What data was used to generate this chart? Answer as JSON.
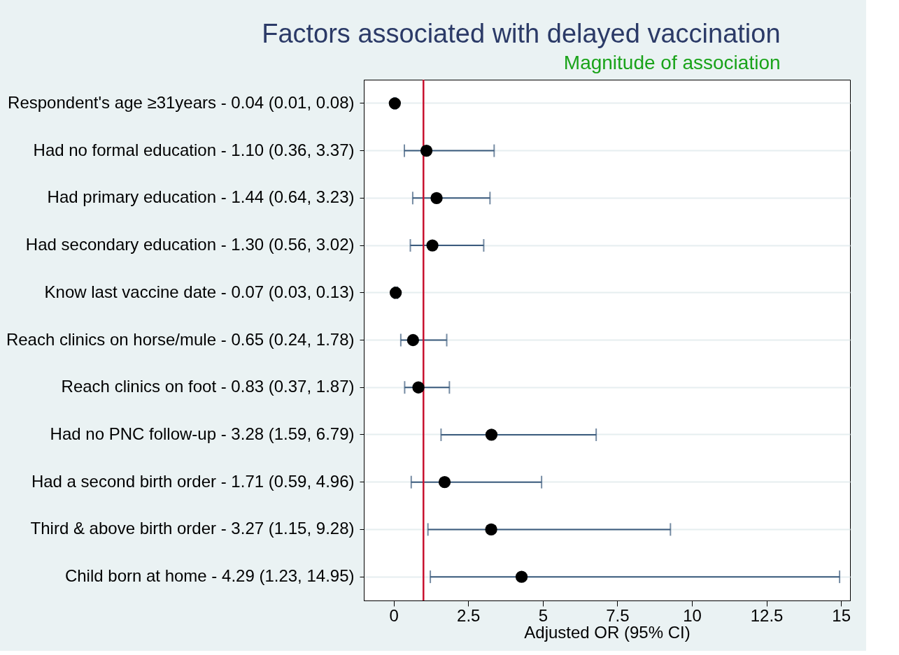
{
  "chart_data": {
    "type": "scatter",
    "orientation": "horizontal",
    "title": "Factors associated with delayed vaccination",
    "subtitle": "Magnitude of association",
    "xlabel": "Adjusted OR (95% CI)",
    "categories": [
      "Respondent's age ≥31years - 0.04 (0.01, 0.08)",
      "Had no formal education - 1.10 (0.36, 3.37)",
      "Had primary education - 1.44 (0.64, 3.23)",
      "Had secondary education - 1.30 (0.56, 3.02)",
      "Know last vaccine date - 0.07 (0.03, 0.13)",
      "Reach clinics on horse/mule - 0.65 (0.24, 1.78)",
      "Reach clinics on foot - 0.83 (0.37, 1.87)",
      "Had no PNC follow-up - 3.28 (1.59, 6.79)",
      "Had a second birth order - 1.71 (0.59, 4.96)",
      "Third & above birth order - 3.27 (1.15, 9.28)",
      "Child born at home - 4.29 (1.23, 14.95)"
    ],
    "series": [
      {
        "color": "#000000",
        "values": [
          0.04,
          1.1,
          1.44,
          1.3,
          0.07,
          0.65,
          0.83,
          3.28,
          1.71,
          3.27,
          4.29
        ],
        "errors": [
          [
            0.01,
            0.08
          ],
          [
            0.36,
            3.37
          ],
          [
            0.64,
            3.23
          ],
          [
            0.56,
            3.02
          ],
          [
            0.03,
            0.13
          ],
          [
            0.24,
            1.78
          ],
          [
            0.37,
            1.87
          ],
          [
            1.59,
            6.79
          ],
          [
            0.59,
            4.96
          ],
          [
            1.15,
            9.28
          ],
          [
            1.23,
            14.95
          ]
        ]
      }
    ],
    "xlim": [
      -1,
      15.3
    ],
    "xticks": [
      0,
      {
        "value": 2.5,
        "label": "2.5"
      },
      5,
      {
        "value": 7.5,
        "label": "7.5"
      },
      10,
      {
        "value": 12.5,
        "label": "12.5"
      },
      15
    ],
    "ref_lines": [
      {
        "axis": "x",
        "value": 1,
        "color": "#c8102e"
      }
    ],
    "grid": "y",
    "marker": "circle"
  }
}
